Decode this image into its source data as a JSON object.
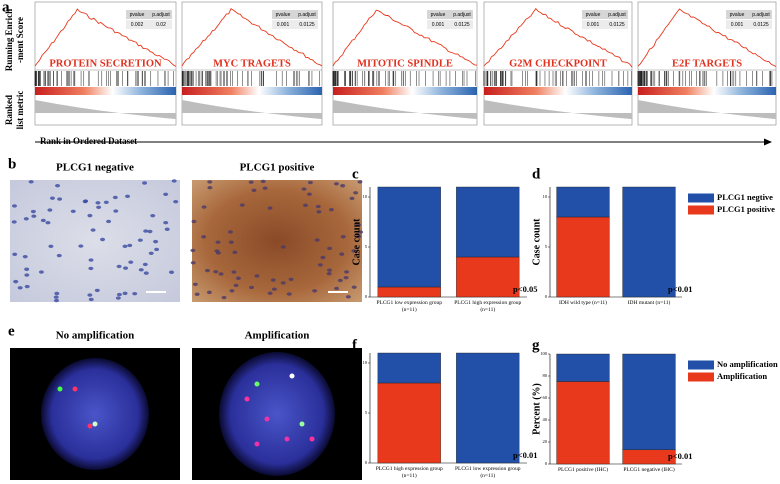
{
  "panel_labels": [
    "a",
    "b",
    "c",
    "d",
    "e",
    "f",
    "g"
  ],
  "gsea": {
    "y_label_top": [
      "Running Enrich",
      "-ment Score"
    ],
    "y_label_bottom": [
      "Ranked",
      "list metric"
    ],
    "x_label": "Rank in Ordered Dataset",
    "table_header": [
      "pvalue",
      "p.adjust"
    ],
    "panels": [
      {
        "name": "PROTEIN SECRETION",
        "pvalue": 0.002,
        "p_adjust": 0.02
      },
      {
        "name": "MYC TRAGETS",
        "pvalue": 0.001,
        "p_adjust": 0.0125
      },
      {
        "name": "MITOTIC SPINDLE",
        "pvalue": 0.001,
        "p_adjust": 0.0125
      },
      {
        "name": "G2M CHECKPOINT",
        "pvalue": 0.001,
        "p_adjust": 0.0125
      },
      {
        "name": "E2F TARGETS",
        "pvalue": 0.001,
        "p_adjust": 0.0125
      }
    ]
  },
  "images": {
    "b": [
      "PLCG1 negative",
      "PLCG1 positive"
    ],
    "e": [
      "No amplification",
      "Amplification"
    ]
  },
  "chart_data": [
    {
      "type": "stacked_bar",
      "y_label": "Case count",
      "categories": [
        "PLCG1 low expression group (n=11)",
        "PLCG1 high expression group (n=11)"
      ],
      "series": [
        {
          "color": "#e8391d",
          "values": [
            1,
            4
          ]
        },
        {
          "color": "#2250a8",
          "values": [
            10,
            7
          ]
        }
      ],
      "ylim": [
        0,
        11
      ],
      "yticks": [
        0,
        5,
        10
      ],
      "annotation": "p<0.05"
    },
    {
      "type": "stacked_bar",
      "y_label": "Case count",
      "categories": [
        "IDH wild type (n=11)",
        "IDH mutant (n=11)"
      ],
      "series": [
        {
          "name": "PLCG1 positive",
          "color": "#e8391d",
          "values": [
            8,
            0
          ]
        },
        {
          "name": "PLCG1 negtive",
          "color": "#2250a8",
          "values": [
            3,
            11
          ]
        }
      ],
      "ylim": [
        0,
        11
      ],
      "yticks": [
        0,
        5,
        10
      ],
      "annotation": "p<0.01",
      "legend": "right"
    },
    {
      "type": "stacked_bar",
      "y_label": "Case count",
      "categories": [
        "PLCG1 high expression group (n=11)",
        "PLCG1 low expression group (n=11)"
      ],
      "series": [
        {
          "color": "#e8391d",
          "values": [
            8,
            0
          ]
        },
        {
          "color": "#2250a8",
          "values": [
            3,
            11
          ]
        }
      ],
      "ylim": [
        0,
        11
      ],
      "yticks": [
        0,
        5,
        10
      ],
      "annotation": "p<0.01"
    },
    {
      "type": "stacked_bar",
      "y_label": "Percent (%)",
      "categories": [
        "PLCG1 positive (IHC)",
        "PLCG1 negative (IHC)"
      ],
      "series": [
        {
          "name": "Amplification",
          "color": "#e8391d",
          "values": [
            75,
            13
          ]
        },
        {
          "name": "No amplification",
          "color": "#2250a8",
          "values": [
            25,
            87
          ]
        }
      ],
      "ylim": [
        0,
        100
      ],
      "yticks": [
        0,
        20,
        40,
        60,
        80,
        100
      ],
      "annotation": "p<0.01",
      "legend": "right"
    }
  ]
}
